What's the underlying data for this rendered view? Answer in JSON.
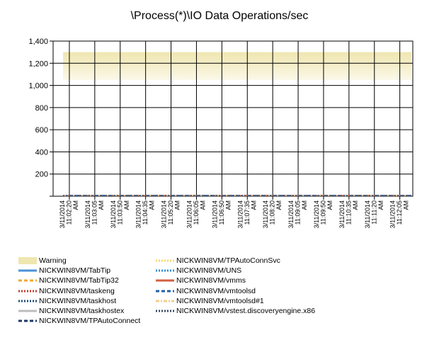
{
  "chart_data": {
    "type": "line",
    "title": "\\Process(*)\\IO Data Operations/sec",
    "ylim": [
      0,
      1400
    ],
    "yticks": [
      "1,400",
      "1,200",
      "1,000",
      "800",
      "600",
      "400",
      "200"
    ],
    "ytick_values": [
      1400,
      1200,
      1000,
      800,
      600,
      400,
      200
    ],
    "grid": true,
    "legend_position": "bottom",
    "x": [
      "3/11/2014 11:02:20 AM",
      "3/11/2014 11:03:05 AM",
      "3/11/2014 11:03:50 AM",
      "3/11/2014 11:04:35 AM",
      "3/11/2014 11:05:20 AM",
      "3/11/2014 11:06:05 AM",
      "3/11/2014 11:06:50 AM",
      "3/11/2014 11:07:35 AM",
      "3/11/2014 11:08:20 AM",
      "3/11/2014 11:09:05 AM",
      "3/11/2014 11:09:50 AM",
      "3/11/2014 11:10:35 AM",
      "3/11/2014 11:11:20 AM",
      "3/11/2014 11:12:05 AM"
    ],
    "xtick_date": "3/11/2014",
    "xtick_times": [
      "11:02:20",
      "11:03:05",
      "11:03:50",
      "11:04:35",
      "11:05:20",
      "11:06:05",
      "11:06:50",
      "11:07:35",
      "11:08:20",
      "11:09:05",
      "11:09:50",
      "11:10:35",
      "11:11:20",
      "11:12:05"
    ],
    "xtick_ampm": "AM",
    "warning_band": {
      "name": "Warning",
      "range": [
        1050,
        1300
      ],
      "color": "#efe6b0"
    },
    "series": [
      {
        "name": "NICKWIN8VM/TabTip",
        "values": [
          0,
          0,
          0,
          0,
          0,
          0,
          0,
          0,
          0,
          0,
          0,
          0,
          0,
          0
        ],
        "color": "#4a90d9",
        "dash": "solid"
      },
      {
        "name": "NICKWIN8VM/TabTip32",
        "values": [
          0,
          0,
          0,
          0,
          0,
          0,
          0,
          0,
          0,
          0,
          0,
          0,
          0,
          0
        ],
        "color": "#f0a830",
        "dash": "dash"
      },
      {
        "name": "NICKWIN8VM/taskeng",
        "values": [
          0,
          0,
          0,
          0,
          0,
          0,
          0,
          0,
          0,
          0,
          0,
          0,
          0,
          0
        ],
        "color": "#c0392b",
        "dash": "dot"
      },
      {
        "name": "NICKWIN8VM/taskhost",
        "values": [
          0,
          0,
          0,
          0,
          0,
          0,
          0,
          0,
          0,
          0,
          0,
          0,
          0,
          0
        ],
        "color": "#1a4a7a",
        "dash": "dot"
      },
      {
        "name": "NICKWIN8VM/taskhostex",
        "values": [
          0,
          0,
          0,
          0,
          0,
          0,
          0,
          0,
          0,
          0,
          0,
          0,
          0,
          0
        ],
        "color": "#bdbdbd",
        "dash": "solid"
      },
      {
        "name": "NICKWIN8VM/TPAutoConnect",
        "values": [
          0,
          0,
          0,
          0,
          0,
          0,
          0,
          0,
          0,
          0,
          0,
          0,
          0,
          0
        ],
        "color": "#1f3864",
        "dash": "dash"
      },
      {
        "name": "NICKWIN8VM/TPAutoConnSvc",
        "values": [
          0,
          0,
          0,
          0,
          0,
          0,
          0,
          0,
          0,
          0,
          0,
          0,
          0,
          0
        ],
        "color": "#f5d76e",
        "dash": "dot"
      },
      {
        "name": "NICKWIN8VM/UNS",
        "values": [
          0,
          0,
          0,
          0,
          0,
          0,
          0,
          0,
          0,
          0,
          0,
          0,
          0,
          0
        ],
        "color": "#2e8bd8",
        "dash": "dot"
      },
      {
        "name": "NICKWIN8VM/vmms",
        "values": [
          0,
          0,
          0,
          0,
          0,
          0,
          0,
          0,
          0,
          0,
          0,
          0,
          0,
          0
        ],
        "color": "#d35f40",
        "dash": "solid"
      },
      {
        "name": "NICKWIN8VM/vmtoolsd",
        "values": [
          0,
          0,
          0,
          0,
          0,
          0,
          0,
          0,
          0,
          0,
          0,
          0,
          0,
          0
        ],
        "color": "#1f5fa8",
        "dash": "dash"
      },
      {
        "name": "NICKWIN8VM/vmtoolsd#1",
        "values": [
          0,
          0,
          0,
          0,
          0,
          0,
          0,
          0,
          0,
          0,
          0,
          0,
          0,
          0
        ],
        "color": "#f2cf8a",
        "dash": "dashdot"
      },
      {
        "name": "NICKWIN8VM/vstest.discoveryengine.x86",
        "values": [
          0,
          0,
          0,
          0,
          0,
          0,
          0,
          0,
          0,
          0,
          0,
          0,
          0,
          0
        ],
        "color": "#3a4a66",
        "dash": "dot"
      }
    ]
  }
}
